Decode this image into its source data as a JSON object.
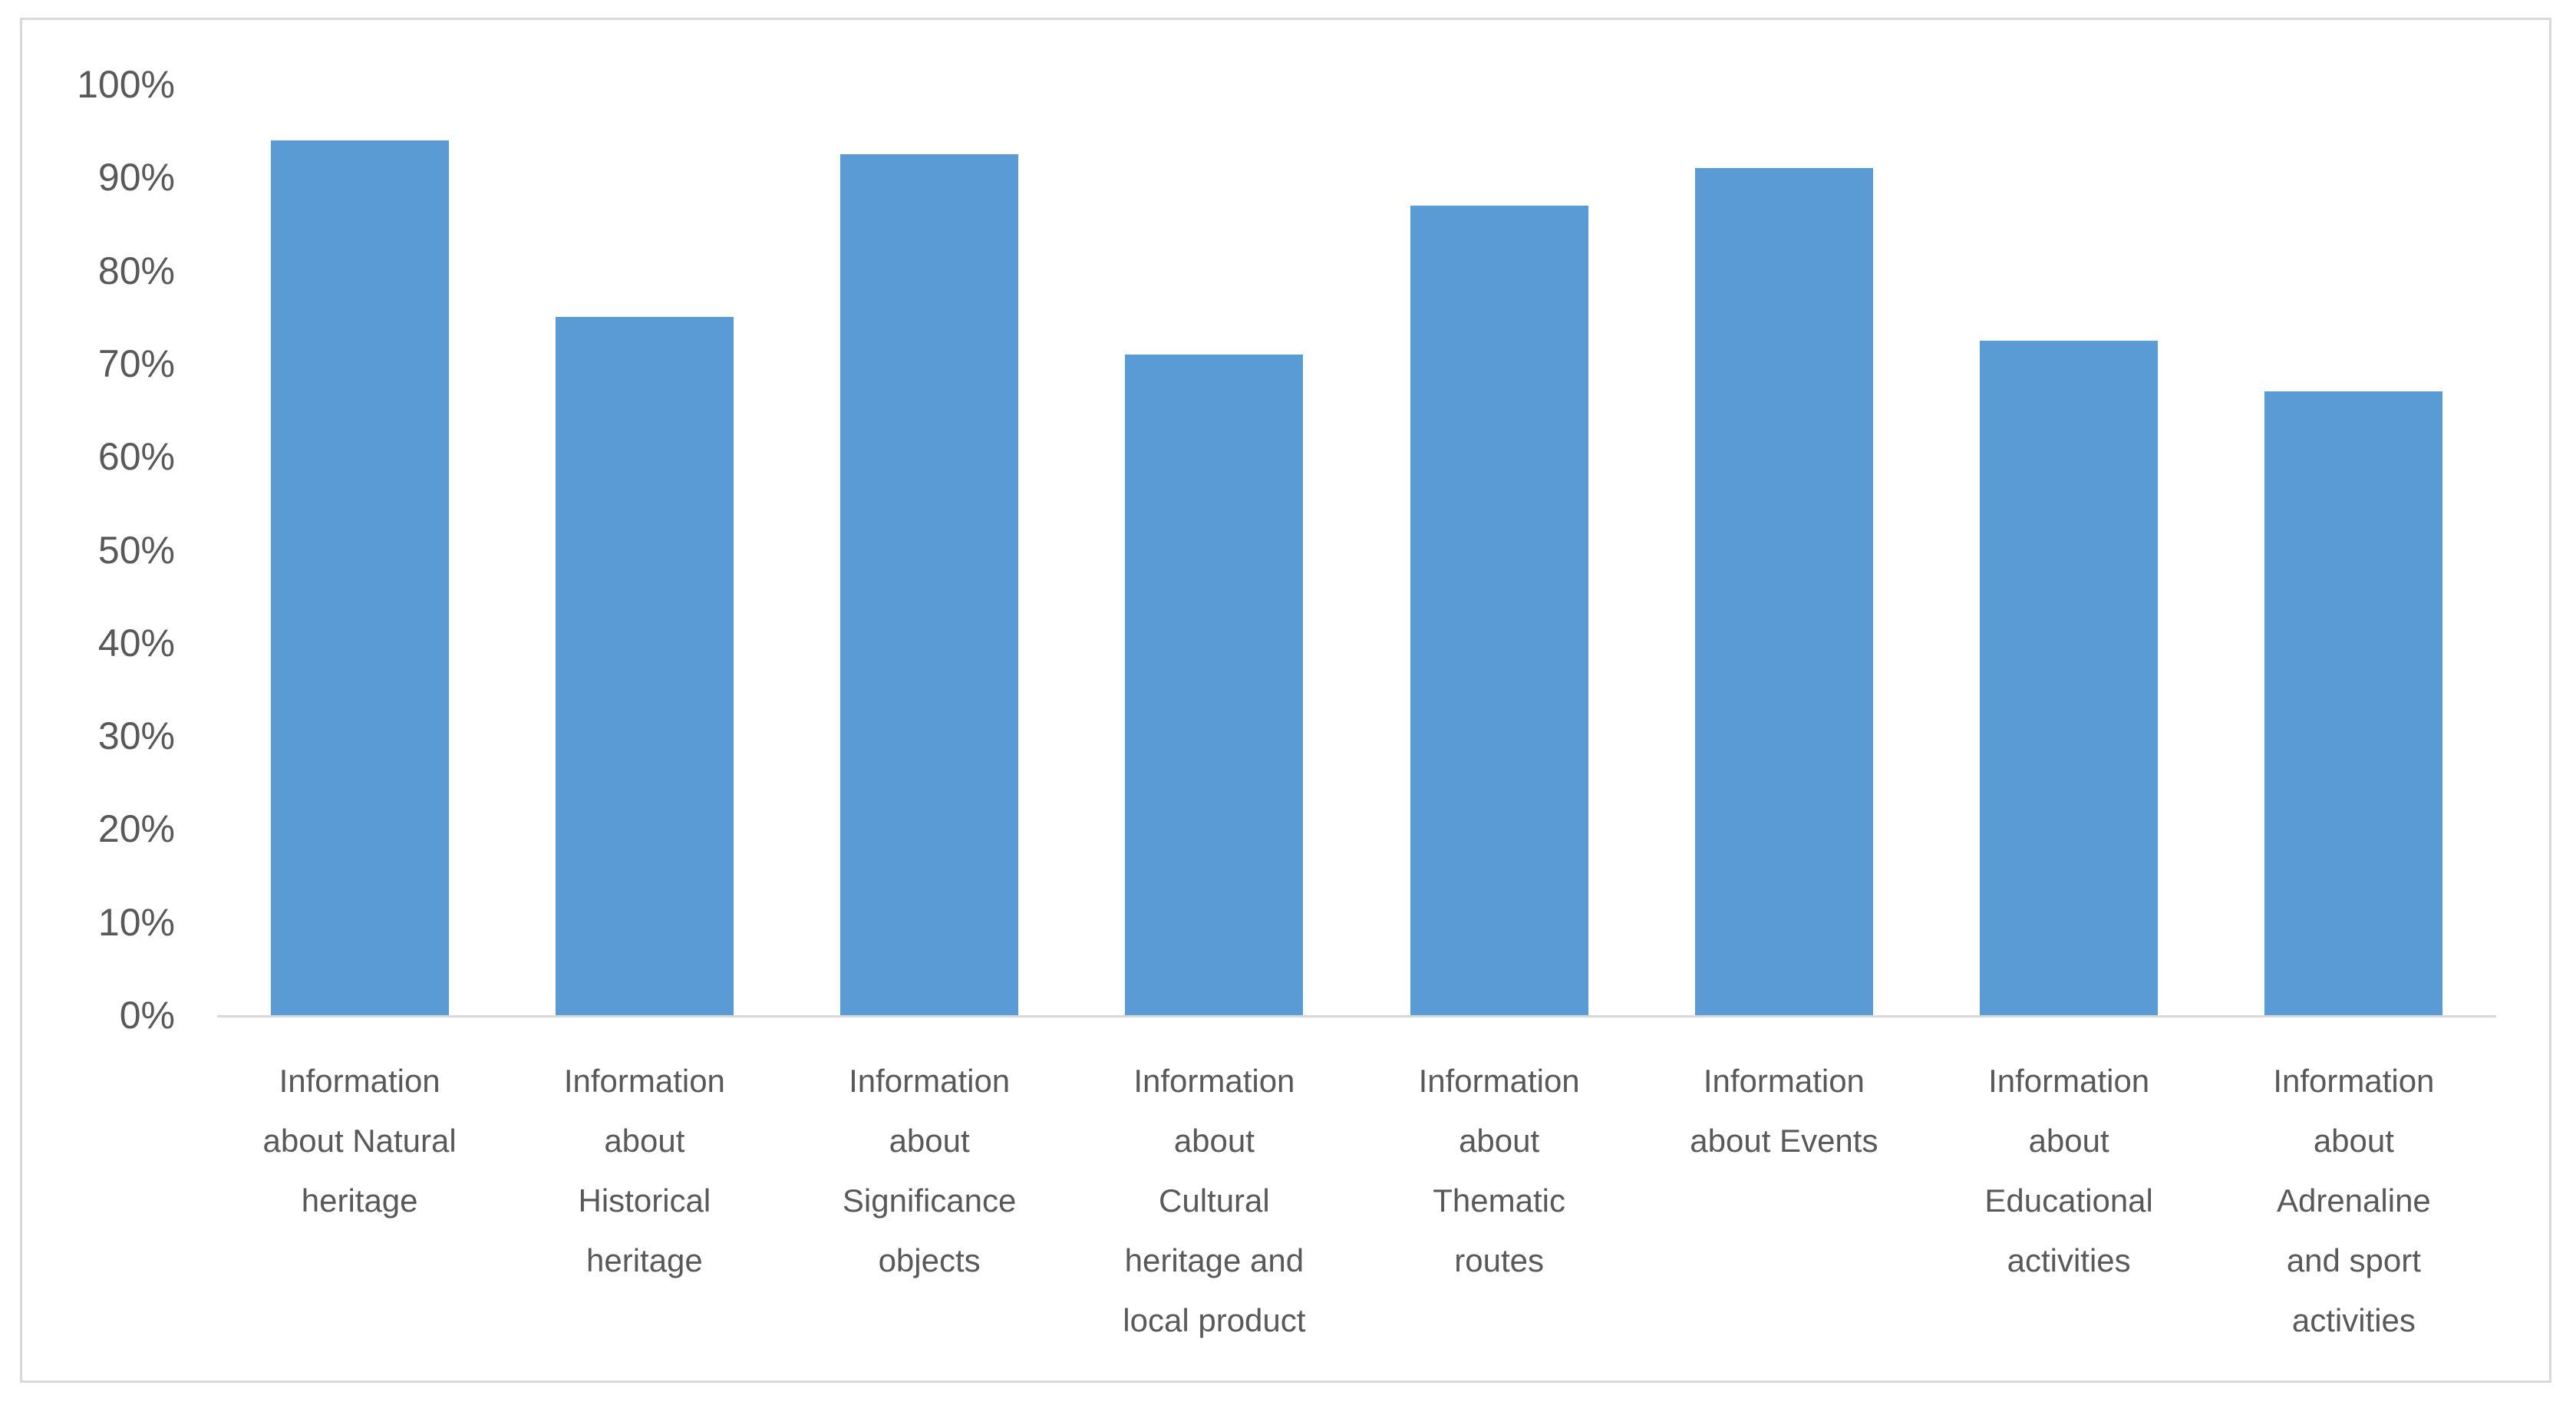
{
  "chart_data": {
    "type": "bar",
    "title": "",
    "xlabel": "",
    "ylabel": "",
    "categories": [
      "Information about Natural heritage",
      "Information about Historical heritage",
      "Information about Significance objects",
      "Information about Cultural heritage and local product",
      "Information about Thematic routes",
      "Information about Events",
      "Information about Educational activities",
      "Information about Adrenaline and sport activities"
    ],
    "categories_display": [
      "Information\nabout Natural\nheritage",
      "Information\nabout\nHistorical\nheritage",
      "Information\nabout\nSignificance\nobjects",
      "Information\nabout\nCultural\nheritage and\nlocal product",
      "Information\nabout\nThematic\nroutes",
      "Information\nabout Events",
      "Information\nabout\nEducational\nactivities",
      "Information\nabout\nAdrenaline\nand sport\nactivities"
    ],
    "values": [
      94,
      75,
      92.5,
      71,
      87,
      91,
      72.5,
      67
    ],
    "value_unit": "%",
    "ylim": [
      0,
      100
    ],
    "y_ticks": [
      {
        "label": "0%",
        "value": 0
      },
      {
        "label": "10%",
        "value": 10
      },
      {
        "label": "20%",
        "value": 20
      },
      {
        "label": "30%",
        "value": 30
      },
      {
        "label": "40%",
        "value": 40
      },
      {
        "label": "50%",
        "value": 50
      },
      {
        "label": "60%",
        "value": 60
      },
      {
        "label": "70%",
        "value": 70
      },
      {
        "label": "80%",
        "value": 80
      },
      {
        "label": "90%",
        "value": 90
      },
      {
        "label": "100%",
        "value": 100
      }
    ],
    "grid": false,
    "legend": false,
    "bar_color": "#5B9BD5",
    "axis_line_color": "#d9d9d9",
    "frame_border_color": "#d9d9d9",
    "text_color": "#595959"
  }
}
